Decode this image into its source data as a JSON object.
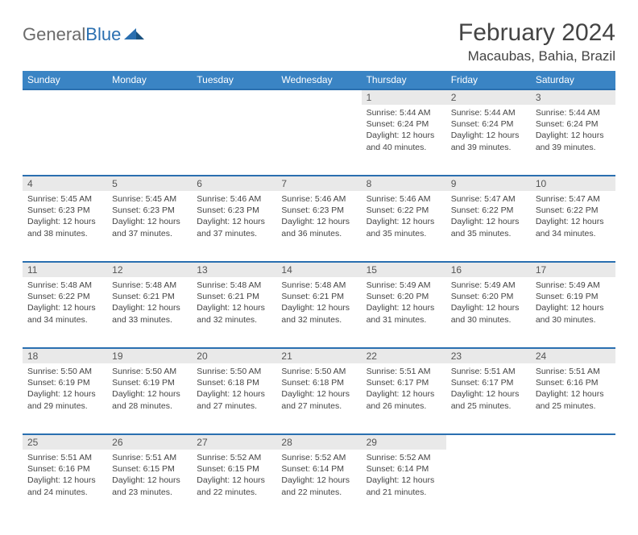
{
  "brand": {
    "name_part1": "General",
    "name_part2": "Blue"
  },
  "title": "February 2024",
  "location": "Macaubas, Bahia, Brazil",
  "colors": {
    "header_bg": "#3a84c4",
    "header_text": "#ffffff",
    "rule": "#2a6fb0",
    "daynum_bg": "#e9e9e9",
    "text": "#444444",
    "logo_gray": "#6b6b6b",
    "logo_blue": "#2a6fb0",
    "background": "#ffffff"
  },
  "day_headers": [
    "Sunday",
    "Monday",
    "Tuesday",
    "Wednesday",
    "Thursday",
    "Friday",
    "Saturday"
  ],
  "weeks": [
    [
      null,
      null,
      null,
      null,
      {
        "n": "1",
        "sunrise": "5:44 AM",
        "sunset": "6:24 PM",
        "daylight": "12 hours and 40 minutes."
      },
      {
        "n": "2",
        "sunrise": "5:44 AM",
        "sunset": "6:24 PM",
        "daylight": "12 hours and 39 minutes."
      },
      {
        "n": "3",
        "sunrise": "5:44 AM",
        "sunset": "6:24 PM",
        "daylight": "12 hours and 39 minutes."
      }
    ],
    [
      {
        "n": "4",
        "sunrise": "5:45 AM",
        "sunset": "6:23 PM",
        "daylight": "12 hours and 38 minutes."
      },
      {
        "n": "5",
        "sunrise": "5:45 AM",
        "sunset": "6:23 PM",
        "daylight": "12 hours and 37 minutes."
      },
      {
        "n": "6",
        "sunrise": "5:46 AM",
        "sunset": "6:23 PM",
        "daylight": "12 hours and 37 minutes."
      },
      {
        "n": "7",
        "sunrise": "5:46 AM",
        "sunset": "6:23 PM",
        "daylight": "12 hours and 36 minutes."
      },
      {
        "n": "8",
        "sunrise": "5:46 AM",
        "sunset": "6:22 PM",
        "daylight": "12 hours and 35 minutes."
      },
      {
        "n": "9",
        "sunrise": "5:47 AM",
        "sunset": "6:22 PM",
        "daylight": "12 hours and 35 minutes."
      },
      {
        "n": "10",
        "sunrise": "5:47 AM",
        "sunset": "6:22 PM",
        "daylight": "12 hours and 34 minutes."
      }
    ],
    [
      {
        "n": "11",
        "sunrise": "5:48 AM",
        "sunset": "6:22 PM",
        "daylight": "12 hours and 34 minutes."
      },
      {
        "n": "12",
        "sunrise": "5:48 AM",
        "sunset": "6:21 PM",
        "daylight": "12 hours and 33 minutes."
      },
      {
        "n": "13",
        "sunrise": "5:48 AM",
        "sunset": "6:21 PM",
        "daylight": "12 hours and 32 minutes."
      },
      {
        "n": "14",
        "sunrise": "5:48 AM",
        "sunset": "6:21 PM",
        "daylight": "12 hours and 32 minutes."
      },
      {
        "n": "15",
        "sunrise": "5:49 AM",
        "sunset": "6:20 PM",
        "daylight": "12 hours and 31 minutes."
      },
      {
        "n": "16",
        "sunrise": "5:49 AM",
        "sunset": "6:20 PM",
        "daylight": "12 hours and 30 minutes."
      },
      {
        "n": "17",
        "sunrise": "5:49 AM",
        "sunset": "6:19 PM",
        "daylight": "12 hours and 30 minutes."
      }
    ],
    [
      {
        "n": "18",
        "sunrise": "5:50 AM",
        "sunset": "6:19 PM",
        "daylight": "12 hours and 29 minutes."
      },
      {
        "n": "19",
        "sunrise": "5:50 AM",
        "sunset": "6:19 PM",
        "daylight": "12 hours and 28 minutes."
      },
      {
        "n": "20",
        "sunrise": "5:50 AM",
        "sunset": "6:18 PM",
        "daylight": "12 hours and 27 minutes."
      },
      {
        "n": "21",
        "sunrise": "5:50 AM",
        "sunset": "6:18 PM",
        "daylight": "12 hours and 27 minutes."
      },
      {
        "n": "22",
        "sunrise": "5:51 AM",
        "sunset": "6:17 PM",
        "daylight": "12 hours and 26 minutes."
      },
      {
        "n": "23",
        "sunrise": "5:51 AM",
        "sunset": "6:17 PM",
        "daylight": "12 hours and 25 minutes."
      },
      {
        "n": "24",
        "sunrise": "5:51 AM",
        "sunset": "6:16 PM",
        "daylight": "12 hours and 25 minutes."
      }
    ],
    [
      {
        "n": "25",
        "sunrise": "5:51 AM",
        "sunset": "6:16 PM",
        "daylight": "12 hours and 24 minutes."
      },
      {
        "n": "26",
        "sunrise": "5:51 AM",
        "sunset": "6:15 PM",
        "daylight": "12 hours and 23 minutes."
      },
      {
        "n": "27",
        "sunrise": "5:52 AM",
        "sunset": "6:15 PM",
        "daylight": "12 hours and 22 minutes."
      },
      {
        "n": "28",
        "sunrise": "5:52 AM",
        "sunset": "6:14 PM",
        "daylight": "12 hours and 22 minutes."
      },
      {
        "n": "29",
        "sunrise": "5:52 AM",
        "sunset": "6:14 PM",
        "daylight": "12 hours and 21 minutes."
      },
      null,
      null
    ]
  ],
  "labels": {
    "sunrise": "Sunrise: ",
    "sunset": "Sunset: ",
    "daylight": "Daylight: "
  }
}
